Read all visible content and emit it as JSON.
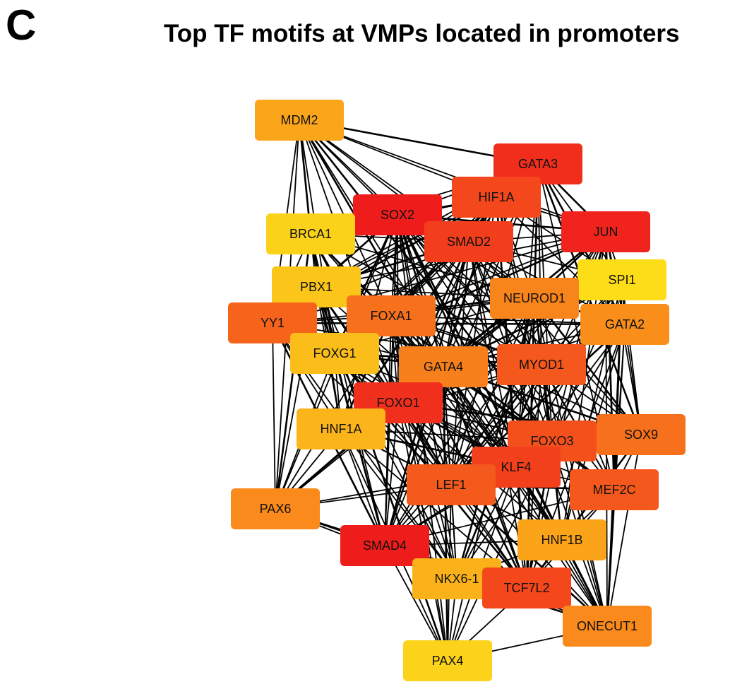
{
  "panel_label": "C",
  "title": "Top TF motifs at VMPs located in promoters",
  "colors": {
    "edge": "#000000",
    "node_text": "#111111"
  },
  "nodes": [
    {
      "id": "MDM2",
      "label": "MDM2",
      "color": "#FBA61A"
    },
    {
      "id": "GATA3",
      "label": "GATA3",
      "color": "#F12E1C"
    },
    {
      "id": "HIF1A",
      "label": "HIF1A",
      "color": "#F4481C"
    },
    {
      "id": "SOX2",
      "label": "SOX2",
      "color": "#EE1D1C"
    },
    {
      "id": "BRCA1",
      "label": "BRCA1",
      "color": "#FBD21A"
    },
    {
      "id": "SMAD2",
      "label": "SMAD2",
      "color": "#F23E1C"
    },
    {
      "id": "JUN",
      "label": "JUN",
      "color": "#F0241C"
    },
    {
      "id": "PBX1",
      "label": "PBX1",
      "color": "#FBC51A"
    },
    {
      "id": "SPI1",
      "label": "SPI1",
      "color": "#FDDC18"
    },
    {
      "id": "NEUROD1",
      "label": "NEUROD1",
      "color": "#F8841C"
    },
    {
      "id": "YY1",
      "label": "YY1",
      "color": "#F6641C"
    },
    {
      "id": "FOXA1",
      "label": "FOXA1",
      "color": "#F7701C"
    },
    {
      "id": "GATA2",
      "label": "GATA2",
      "color": "#F98E1B"
    },
    {
      "id": "FOXG1",
      "label": "FOXG1",
      "color": "#FBBD1A"
    },
    {
      "id": "GATA4",
      "label": "GATA4",
      "color": "#F8801C"
    },
    {
      "id": "MYOD1",
      "label": "MYOD1",
      "color": "#F5581C"
    },
    {
      "id": "FOXO1",
      "label": "FOXO1",
      "color": "#F0301C"
    },
    {
      "id": "HNF1A",
      "label": "HNF1A",
      "color": "#FBB41A"
    },
    {
      "id": "FOXO3",
      "label": "FOXO3",
      "color": "#F4501C"
    },
    {
      "id": "SOX9",
      "label": "SOX9",
      "color": "#F7701C"
    },
    {
      "id": "KLF4",
      "label": "KLF4",
      "color": "#F2401C"
    },
    {
      "id": "LEF1",
      "label": "LEF1",
      "color": "#F45A1C"
    },
    {
      "id": "MEF2C",
      "label": "MEF2C",
      "color": "#F5581C"
    },
    {
      "id": "PAX6",
      "label": "PAX6",
      "color": "#F98A1B"
    },
    {
      "id": "SMAD4",
      "label": "SMAD4",
      "color": "#EE1D1C"
    },
    {
      "id": "HNF1B",
      "label": "HNF1B",
      "color": "#FBA41A"
    },
    {
      "id": "NKX6-1",
      "label": "NKX6-1",
      "color": "#FBB21A"
    },
    {
      "id": "TCF7L2",
      "label": "TCF7L2",
      "color": "#F4481C"
    },
    {
      "id": "ONECUT1",
      "label": "ONECUT1",
      "color": "#F98A1B"
    },
    {
      "id": "PAX4",
      "label": "PAX4",
      "color": "#FDD21A"
    }
  ],
  "edges": [
    [
      "MDM2",
      "GATA3"
    ],
    [
      "MDM2",
      "HIF1A"
    ],
    [
      "MDM2",
      "SOX2"
    ],
    [
      "MDM2",
      "SMAD2"
    ],
    [
      "MDM2",
      "JUN"
    ],
    [
      "MDM2",
      "BRCA1"
    ],
    [
      "MDM2",
      "PBX1"
    ],
    [
      "MDM2",
      "YY1"
    ],
    [
      "MDM2",
      "FOXA1"
    ],
    [
      "MDM2",
      "FOXG1"
    ],
    [
      "MDM2",
      "GATA4"
    ],
    [
      "MDM2",
      "FOXO1"
    ],
    [
      "MDM2",
      "PAX6"
    ],
    [
      "MDM2",
      "NEUROD1"
    ],
    [
      "MDM2",
      "MYOD1"
    ],
    [
      "MDM2",
      "FOXO3"
    ],
    [
      "MDM2",
      "KLF4"
    ],
    [
      "GATA3",
      "HIF1A"
    ],
    [
      "GATA3",
      "SOX2"
    ],
    [
      "GATA3",
      "SMAD2"
    ],
    [
      "GATA3",
      "JUN"
    ],
    [
      "GATA3",
      "BRCA1"
    ],
    [
      "GATA3",
      "PBX1"
    ],
    [
      "GATA3",
      "NEUROD1"
    ],
    [
      "GATA3",
      "FOXA1"
    ],
    [
      "GATA3",
      "GATA2"
    ],
    [
      "GATA3",
      "GATA4"
    ],
    [
      "GATA3",
      "MYOD1"
    ],
    [
      "GATA3",
      "FOXO1"
    ],
    [
      "GATA3",
      "FOXO3"
    ],
    [
      "GATA3",
      "SOX9"
    ],
    [
      "GATA3",
      "KLF4"
    ],
    [
      "GATA3",
      "LEF1"
    ],
    [
      "GATA3",
      "MEF2C"
    ],
    [
      "GATA3",
      "SMAD4"
    ],
    [
      "GATA3",
      "TCF7L2"
    ],
    [
      "GATA3",
      "SPI1"
    ],
    [
      "GATA3",
      "YY1"
    ],
    [
      "GATA3",
      "FOXG1"
    ],
    [
      "HIF1A",
      "SOX2"
    ],
    [
      "HIF1A",
      "SMAD2"
    ],
    [
      "HIF1A",
      "JUN"
    ],
    [
      "HIF1A",
      "BRCA1"
    ],
    [
      "HIF1A",
      "PBX1"
    ],
    [
      "HIF1A",
      "NEUROD1"
    ],
    [
      "HIF1A",
      "FOXA1"
    ],
    [
      "HIF1A",
      "GATA4"
    ],
    [
      "HIF1A",
      "MYOD1"
    ],
    [
      "HIF1A",
      "FOXO1"
    ],
    [
      "HIF1A",
      "FOXO3"
    ],
    [
      "HIF1A",
      "KLF4"
    ],
    [
      "HIF1A",
      "LEF1"
    ],
    [
      "HIF1A",
      "SMAD4"
    ],
    [
      "HIF1A",
      "TCF7L2"
    ],
    [
      "HIF1A",
      "SPI1"
    ],
    [
      "HIF1A",
      "YY1"
    ],
    [
      "HIF1A",
      "GATA2"
    ],
    [
      "HIF1A",
      "FOXG1"
    ],
    [
      "HIF1A",
      "HNF1A"
    ],
    [
      "SOX2",
      "SMAD2"
    ],
    [
      "SOX2",
      "JUN"
    ],
    [
      "SOX2",
      "BRCA1"
    ],
    [
      "SOX2",
      "PBX1"
    ],
    [
      "SOX2",
      "NEUROD1"
    ],
    [
      "SOX2",
      "FOXA1"
    ],
    [
      "SOX2",
      "GATA4"
    ],
    [
      "SOX2",
      "MYOD1"
    ],
    [
      "SOX2",
      "FOXO1"
    ],
    [
      "SOX2",
      "FOXO3"
    ],
    [
      "SOX2",
      "SOX9"
    ],
    [
      "SOX2",
      "KLF4"
    ],
    [
      "SOX2",
      "LEF1"
    ],
    [
      "SOX2",
      "SMAD4"
    ],
    [
      "SOX2",
      "TCF7L2"
    ],
    [
      "SOX2",
      "YY1"
    ],
    [
      "SOX2",
      "FOXG1"
    ],
    [
      "SOX2",
      "HNF1A"
    ],
    [
      "SOX2",
      "PAX6"
    ],
    [
      "SOX2",
      "NKX6-1"
    ],
    [
      "SOX2",
      "MEF2C"
    ],
    [
      "SOX2",
      "ONECUT1"
    ],
    [
      "SOX2",
      "PAX4"
    ],
    [
      "SOX2",
      "HNF1B"
    ],
    [
      "SMAD2",
      "JUN"
    ],
    [
      "SMAD2",
      "BRCA1"
    ],
    [
      "SMAD2",
      "PBX1"
    ],
    [
      "SMAD2",
      "NEUROD1"
    ],
    [
      "SMAD2",
      "FOXA1"
    ],
    [
      "SMAD2",
      "GATA4"
    ],
    [
      "SMAD2",
      "MYOD1"
    ],
    [
      "SMAD2",
      "FOXO1"
    ],
    [
      "SMAD2",
      "FOXO3"
    ],
    [
      "SMAD2",
      "SOX9"
    ],
    [
      "SMAD2",
      "KLF4"
    ],
    [
      "SMAD2",
      "LEF1"
    ],
    [
      "SMAD2",
      "SMAD4"
    ],
    [
      "SMAD2",
      "TCF7L2"
    ],
    [
      "SMAD2",
      "SPI1"
    ],
    [
      "SMAD2",
      "YY1"
    ],
    [
      "SMAD2",
      "GATA2"
    ],
    [
      "SMAD2",
      "FOXG1"
    ],
    [
      "SMAD2",
      "MEF2C"
    ],
    [
      "SMAD2",
      "HNF1A"
    ],
    [
      "SMAD2",
      "ONECUT1"
    ],
    [
      "JUN",
      "PBX1"
    ],
    [
      "JUN",
      "NEUROD1"
    ],
    [
      "JUN",
      "FOXA1"
    ],
    [
      "JUN",
      "GATA2"
    ],
    [
      "JUN",
      "GATA4"
    ],
    [
      "JUN",
      "MYOD1"
    ],
    [
      "JUN",
      "FOXO1"
    ],
    [
      "JUN",
      "FOXO3"
    ],
    [
      "JUN",
      "SOX9"
    ],
    [
      "JUN",
      "KLF4"
    ],
    [
      "JUN",
      "LEF1"
    ],
    [
      "JUN",
      "MEF2C"
    ],
    [
      "JUN",
      "SMAD4"
    ],
    [
      "JUN",
      "TCF7L2"
    ],
    [
      "JUN",
      "SPI1"
    ],
    [
      "JUN",
      "YY1"
    ],
    [
      "JUN",
      "FOXG1"
    ],
    [
      "JUN",
      "HNF1B"
    ],
    [
      "JUN",
      "ONECUT1"
    ],
    [
      "BRCA1",
      "PBX1"
    ],
    [
      "BRCA1",
      "YY1"
    ],
    [
      "BRCA1",
      "FOXA1"
    ],
    [
      "BRCA1",
      "FOXG1"
    ],
    [
      "BRCA1",
      "GATA4"
    ],
    [
      "BRCA1",
      "FOXO1"
    ],
    [
      "BRCA1",
      "HNF1A"
    ],
    [
      "BRCA1",
      "PAX6"
    ],
    [
      "BRCA1",
      "NEUROD1"
    ],
    [
      "BRCA1",
      "MYOD1"
    ],
    [
      "BRCA1",
      "SMAD4"
    ],
    [
      "BRCA1",
      "KLF4"
    ],
    [
      "BRCA1",
      "LEF1"
    ],
    [
      "PBX1",
      "YY1"
    ],
    [
      "PBX1",
      "FOXA1"
    ],
    [
      "PBX1",
      "FOXG1"
    ],
    [
      "PBX1",
      "GATA4"
    ],
    [
      "PBX1",
      "FOXO1"
    ],
    [
      "PBX1",
      "HNF1A"
    ],
    [
      "PBX1",
      "PAX6"
    ],
    [
      "PBX1",
      "NEUROD1"
    ],
    [
      "PBX1",
      "MYOD1"
    ],
    [
      "PBX1",
      "SMAD4"
    ],
    [
      "PBX1",
      "KLF4"
    ],
    [
      "PBX1",
      "LEF1"
    ],
    [
      "PBX1",
      "FOXO3"
    ],
    [
      "PBX1",
      "NKX6-1"
    ],
    [
      "PBX1",
      "PAX4"
    ],
    [
      "SPI1",
      "NEUROD1"
    ],
    [
      "SPI1",
      "GATA2"
    ],
    [
      "SPI1",
      "MYOD1"
    ],
    [
      "SPI1",
      "FOXA1"
    ],
    [
      "SPI1",
      "GATA4"
    ],
    [
      "SPI1",
      "FOXO1"
    ],
    [
      "SPI1",
      "FOXO3"
    ],
    [
      "SPI1",
      "SOX9"
    ],
    [
      "SPI1",
      "KLF4"
    ],
    [
      "SPI1",
      "MEF2C"
    ],
    [
      "SPI1",
      "LEF1"
    ],
    [
      "SPI1",
      "HNF1B"
    ],
    [
      "SPI1",
      "ONECUT1"
    ],
    [
      "NEUROD1",
      "FOXA1"
    ],
    [
      "NEUROD1",
      "GATA2"
    ],
    [
      "NEUROD1",
      "GATA4"
    ],
    [
      "NEUROD1",
      "MYOD1"
    ],
    [
      "NEUROD1",
      "FOXO1"
    ],
    [
      "NEUROD1",
      "FOXO3"
    ],
    [
      "NEUROD1",
      "SOX9"
    ],
    [
      "NEUROD1",
      "KLF4"
    ],
    [
      "NEUROD1",
      "LEF1"
    ],
    [
      "NEUROD1",
      "MEF2C"
    ],
    [
      "NEUROD1",
      "SMAD4"
    ],
    [
      "NEUROD1",
      "TCF7L2"
    ],
    [
      "NEUROD1",
      "HNF1B"
    ],
    [
      "NEUROD1",
      "YY1"
    ],
    [
      "NEUROD1",
      "FOXG1"
    ],
    [
      "NEUROD1",
      "HNF1A"
    ],
    [
      "NEUROD1",
      "NKX6-1"
    ],
    [
      "NEUROD1",
      "ONECUT1"
    ],
    [
      "NEUROD1",
      "PAX6"
    ],
    [
      "NEUROD1",
      "PAX4"
    ],
    [
      "YY1",
      "FOXA1"
    ],
    [
      "YY1",
      "FOXG1"
    ],
    [
      "YY1",
      "GATA4"
    ],
    [
      "YY1",
      "FOXO1"
    ],
    [
      "YY1",
      "HNF1A"
    ],
    [
      "YY1",
      "PAX6"
    ],
    [
      "YY1",
      "SMAD4"
    ],
    [
      "YY1",
      "MYOD1"
    ],
    [
      "YY1",
      "LEF1"
    ],
    [
      "YY1",
      "KLF4"
    ],
    [
      "YY1",
      "NKX6-1"
    ],
    [
      "YY1",
      "GATA2"
    ],
    [
      "FOXA1",
      "FOXG1"
    ],
    [
      "FOXA1",
      "GATA4"
    ],
    [
      "FOXA1",
      "MYOD1"
    ],
    [
      "FOXA1",
      "FOXO1"
    ],
    [
      "FOXA1",
      "HNF1A"
    ],
    [
      "FOXA1",
      "FOXO3"
    ],
    [
      "FOXA1",
      "KLF4"
    ],
    [
      "FOXA1",
      "LEF1"
    ],
    [
      "FOXA1",
      "SMAD4"
    ],
    [
      "FOXA1",
      "TCF7L2"
    ],
    [
      "FOXA1",
      "NKX6-1"
    ],
    [
      "FOXA1",
      "PAX6"
    ],
    [
      "FOXA1",
      "GATA2"
    ],
    [
      "FOXA1",
      "SOX9"
    ],
    [
      "FOXA1",
      "MEF2C"
    ],
    [
      "FOXA1",
      "HNF1B"
    ],
    [
      "FOXA1",
      "ONECUT1"
    ],
    [
      "FOXA1",
      "PAX4"
    ],
    [
      "GATA2",
      "GATA4"
    ],
    [
      "GATA2",
      "MYOD1"
    ],
    [
      "GATA2",
      "FOXO3"
    ],
    [
      "GATA2",
      "SOX9"
    ],
    [
      "GATA2",
      "KLF4"
    ],
    [
      "GATA2",
      "MEF2C"
    ],
    [
      "GATA2",
      "LEF1"
    ],
    [
      "GATA2",
      "HNF1B"
    ],
    [
      "GATA2",
      "ONECUT1"
    ],
    [
      "GATA2",
      "FOXO1"
    ],
    [
      "GATA2",
      "TCF7L2"
    ],
    [
      "FOXG1",
      "GATA4"
    ],
    [
      "FOXG1",
      "FOXO1"
    ],
    [
      "FOXG1",
      "HNF1A"
    ],
    [
      "FOXG1",
      "PAX6"
    ],
    [
      "FOXG1",
      "SMAD4"
    ],
    [
      "FOXG1",
      "MYOD1"
    ],
    [
      "FOXG1",
      "LEF1"
    ],
    [
      "FOXG1",
      "KLF4"
    ],
    [
      "FOXG1",
      "NKX6-1"
    ],
    [
      "FOXG1",
      "FOXO3"
    ],
    [
      "FOXG1",
      "TCF7L2"
    ],
    [
      "GATA4",
      "MYOD1"
    ],
    [
      "GATA4",
      "FOXO1"
    ],
    [
      "GATA4",
      "HNF1A"
    ],
    [
      "GATA4",
      "FOXO3"
    ],
    [
      "GATA4",
      "SOX9"
    ],
    [
      "GATA4",
      "KLF4"
    ],
    [
      "GATA4",
      "LEF1"
    ],
    [
      "GATA4",
      "MEF2C"
    ],
    [
      "GATA4",
      "SMAD4"
    ],
    [
      "GATA4",
      "TCF7L2"
    ],
    [
      "GATA4",
      "HNF1B"
    ],
    [
      "GATA4",
      "NKX6-1"
    ],
    [
      "GATA4",
      "ONECUT1"
    ],
    [
      "GATA4",
      "PAX6"
    ],
    [
      "GATA4",
      "PAX4"
    ],
    [
      "MYOD1",
      "FOXO1"
    ],
    [
      "MYOD1",
      "FOXO3"
    ],
    [
      "MYOD1",
      "SOX9"
    ],
    [
      "MYOD1",
      "KLF4"
    ],
    [
      "MYOD1",
      "LEF1"
    ],
    [
      "MYOD1",
      "MEF2C"
    ],
    [
      "MYOD1",
      "SMAD4"
    ],
    [
      "MYOD1",
      "TCF7L2"
    ],
    [
      "MYOD1",
      "HNF1B"
    ],
    [
      "MYOD1",
      "NKX6-1"
    ],
    [
      "MYOD1",
      "ONECUT1"
    ],
    [
      "MYOD1",
      "HNF1A"
    ],
    [
      "FOXO1",
      "HNF1A"
    ],
    [
      "FOXO1",
      "FOXO3"
    ],
    [
      "FOXO1",
      "KLF4"
    ],
    [
      "FOXO1",
      "LEF1"
    ],
    [
      "FOXO1",
      "SMAD4"
    ],
    [
      "FOXO1",
      "TCF7L2"
    ],
    [
      "FOXO1",
      "NKX6-1"
    ],
    [
      "FOXO1",
      "PAX6"
    ],
    [
      "FOXO1",
      "MEF2C"
    ],
    [
      "FOXO1",
      "HNF1B"
    ],
    [
      "FOXO1",
      "ONECUT1"
    ],
    [
      "FOXO1",
      "PAX4"
    ],
    [
      "FOXO1",
      "SOX9"
    ],
    [
      "HNF1A",
      "PAX6"
    ],
    [
      "HNF1A",
      "SMAD4"
    ],
    [
      "HNF1A",
      "LEF1"
    ],
    [
      "HNF1A",
      "NKX6-1"
    ],
    [
      "HNF1A",
      "KLF4"
    ],
    [
      "HNF1A",
      "FOXO3"
    ],
    [
      "HNF1A",
      "TCF7L2"
    ],
    [
      "HNF1A",
      "HNF1B"
    ],
    [
      "HNF1A",
      "PAX4"
    ],
    [
      "FOXO3",
      "SOX9"
    ],
    [
      "FOXO3",
      "KLF4"
    ],
    [
      "FOXO3",
      "LEF1"
    ],
    [
      "FOXO3",
      "MEF2C"
    ],
    [
      "FOXO3",
      "SMAD4"
    ],
    [
      "FOXO3",
      "TCF7L2"
    ],
    [
      "FOXO3",
      "HNF1B"
    ],
    [
      "FOXO3",
      "NKX6-1"
    ],
    [
      "FOXO3",
      "ONECUT1"
    ],
    [
      "FOXO3",
      "PAX4"
    ],
    [
      "SOX9",
      "KLF4"
    ],
    [
      "SOX9",
      "MEF2C"
    ],
    [
      "SOX9",
      "LEF1"
    ],
    [
      "SOX9",
      "HNF1B"
    ],
    [
      "SOX9",
      "ONECUT1"
    ],
    [
      "SOX9",
      "TCF7L2"
    ],
    [
      "KLF4",
      "LEF1"
    ],
    [
      "KLF4",
      "MEF2C"
    ],
    [
      "KLF4",
      "SMAD4"
    ],
    [
      "KLF4",
      "TCF7L2"
    ],
    [
      "KLF4",
      "HNF1B"
    ],
    [
      "KLF4",
      "NKX6-1"
    ],
    [
      "KLF4",
      "ONECUT1"
    ],
    [
      "KLF4",
      "PAX6"
    ],
    [
      "KLF4",
      "PAX4"
    ],
    [
      "LEF1",
      "MEF2C"
    ],
    [
      "LEF1",
      "SMAD4"
    ],
    [
      "LEF1",
      "TCF7L2"
    ],
    [
      "LEF1",
      "HNF1B"
    ],
    [
      "LEF1",
      "NKX6-1"
    ],
    [
      "LEF1",
      "ONECUT1"
    ],
    [
      "LEF1",
      "PAX6"
    ],
    [
      "LEF1",
      "PAX4"
    ],
    [
      "MEF2C",
      "TCF7L2"
    ],
    [
      "MEF2C",
      "HNF1B"
    ],
    [
      "MEF2C",
      "ONECUT1"
    ],
    [
      "MEF2C",
      "SMAD4"
    ],
    [
      "PAX6",
      "SMAD4"
    ],
    [
      "PAX6",
      "NKX6-1"
    ],
    [
      "PAX6",
      "TCF7L2"
    ],
    [
      "SMAD4",
      "NKX6-1"
    ],
    [
      "SMAD4",
      "TCF7L2"
    ],
    [
      "SMAD4",
      "PAX4"
    ],
    [
      "SMAD4",
      "HNF1B"
    ],
    [
      "SMAD4",
      "ONECUT1"
    ],
    [
      "HNF1B",
      "TCF7L2"
    ],
    [
      "HNF1B",
      "ONECUT1"
    ],
    [
      "HNF1B",
      "NKX6-1"
    ],
    [
      "NKX6-1",
      "TCF7L2"
    ],
    [
      "NKX6-1",
      "PAX4"
    ],
    [
      "NKX6-1",
      "ONECUT1"
    ],
    [
      "TCF7L2",
      "ONECUT1"
    ],
    [
      "TCF7L2",
      "PAX4"
    ],
    [
      "ONECUT1",
      "PAX4"
    ]
  ]
}
